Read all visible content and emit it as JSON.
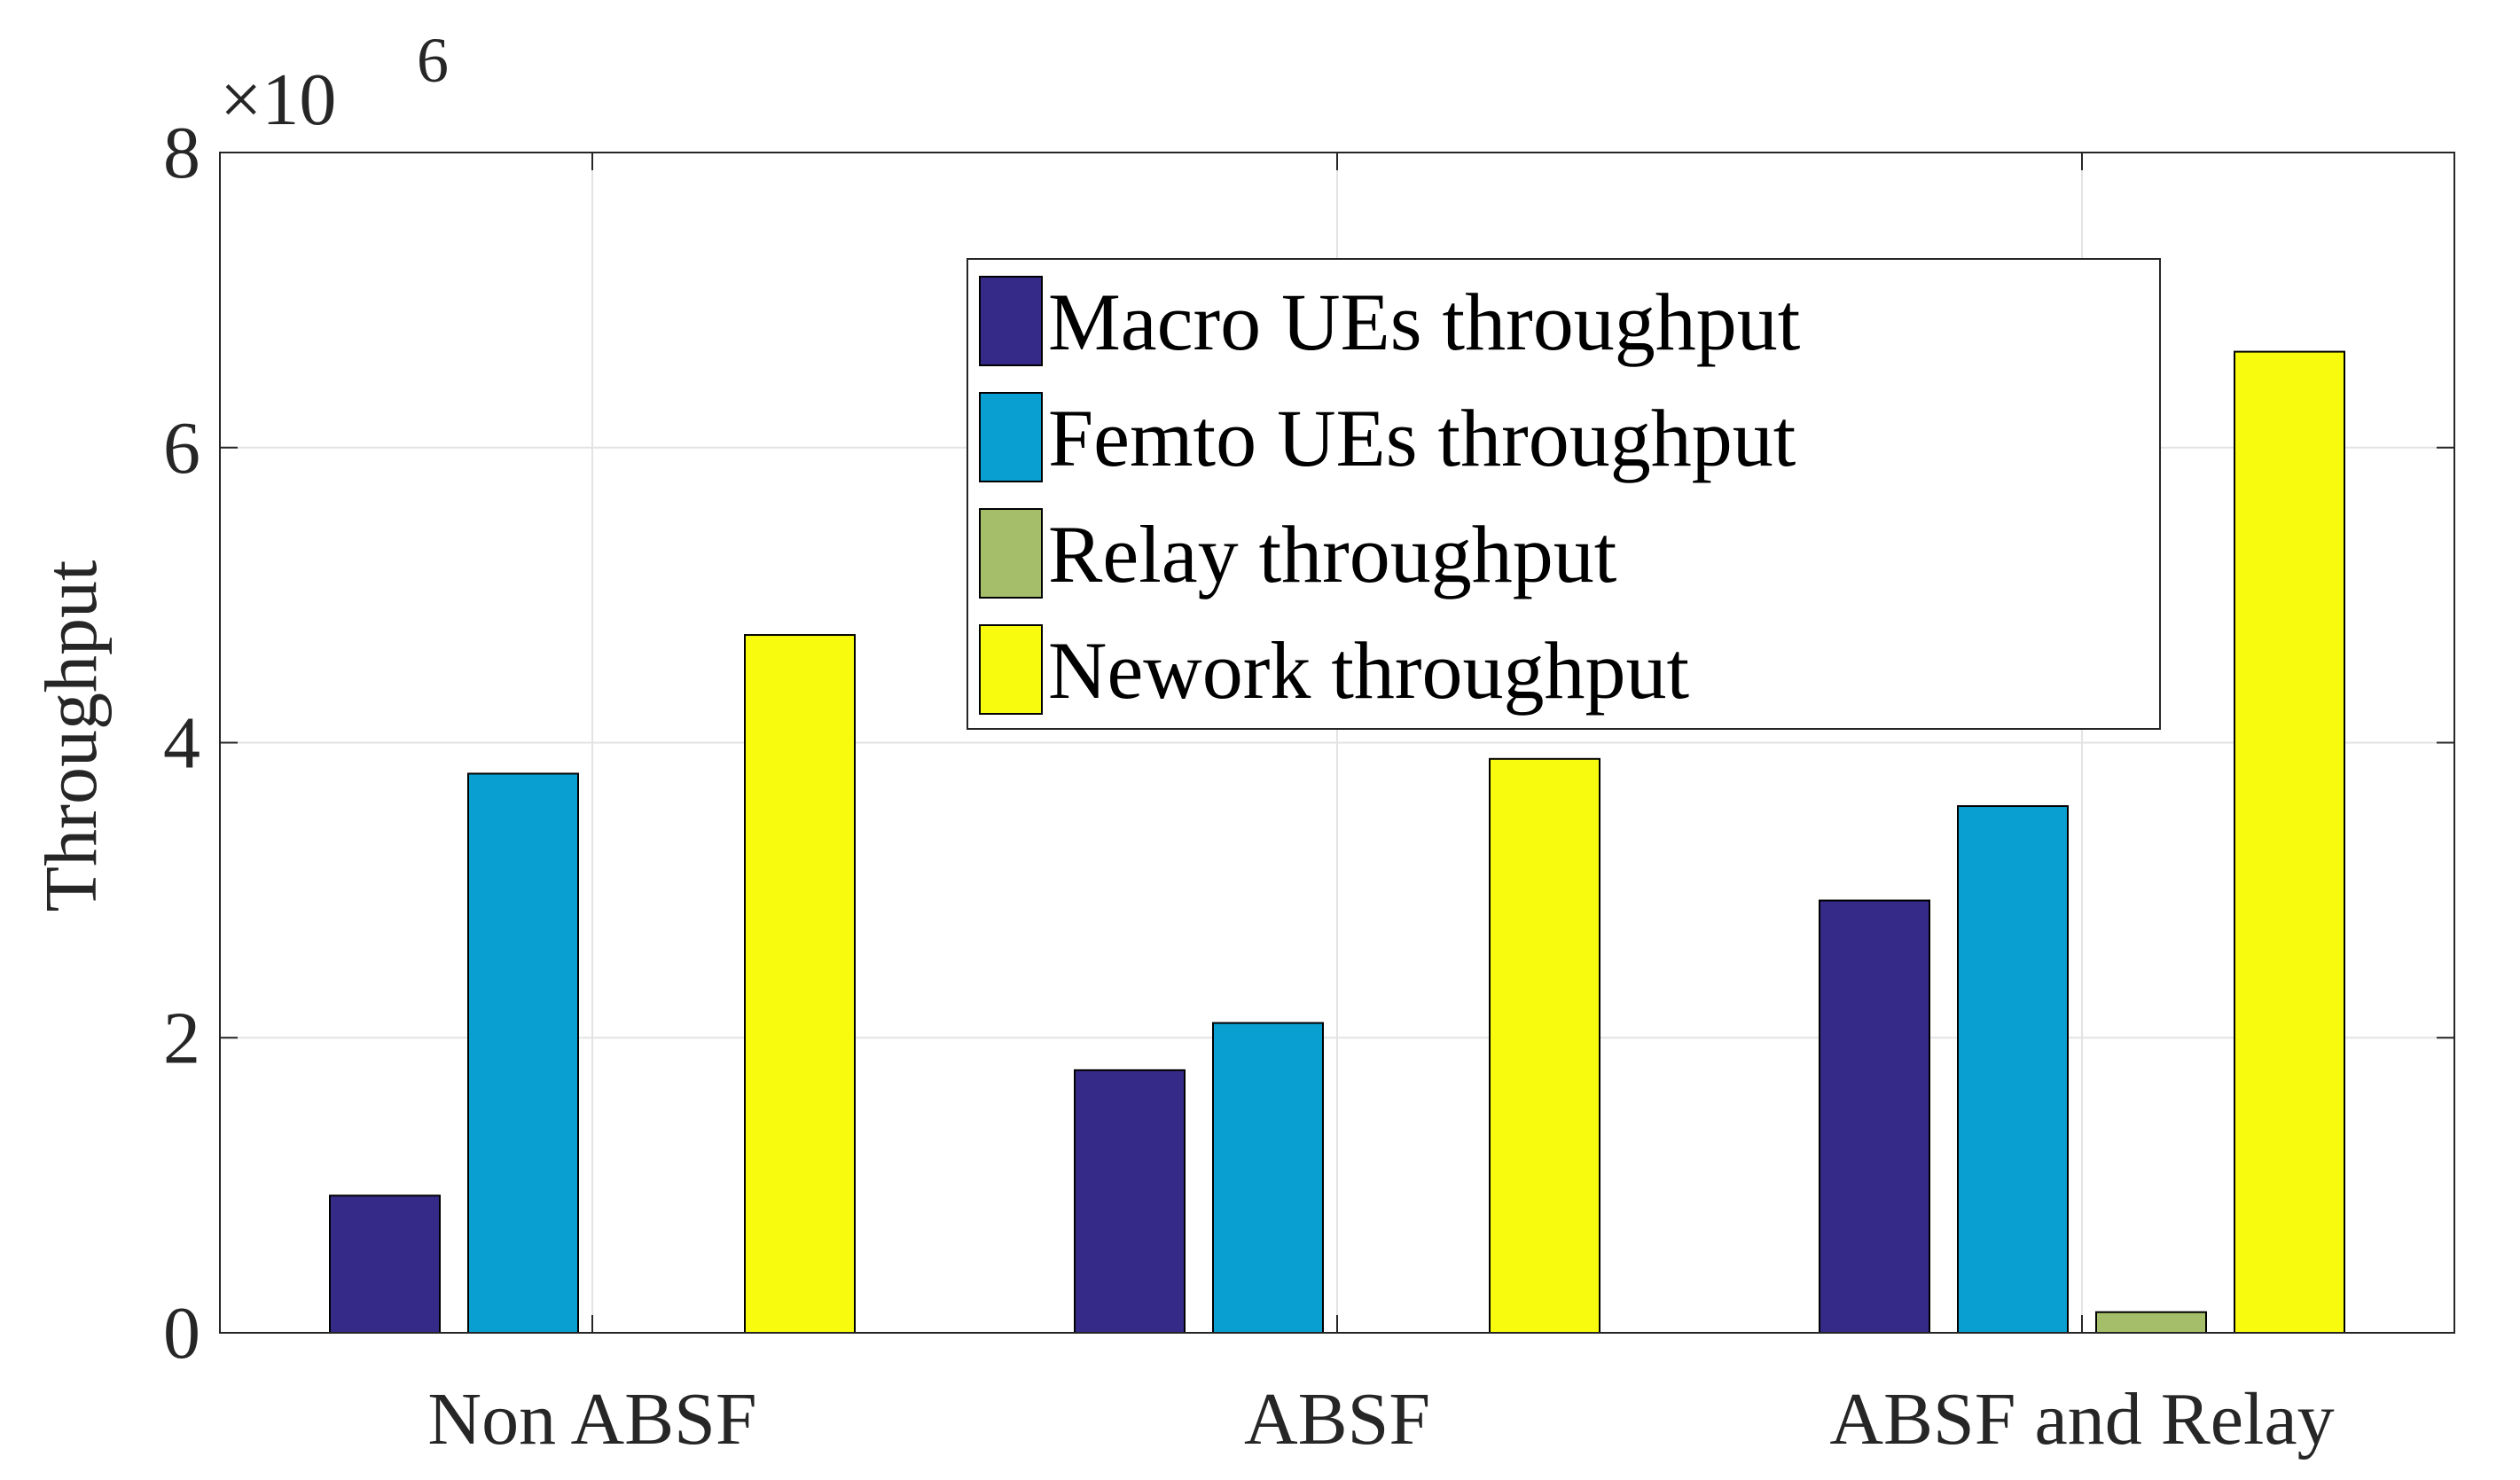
{
  "chart_data": {
    "type": "bar",
    "title": "",
    "xlabel": "",
    "ylabel": "Throughput",
    "exponent_label": {
      "base": "×10",
      "power": "6"
    },
    "categories": [
      "Non ABSF",
      "ABSF",
      "ABSF and Relay"
    ],
    "ylim": [
      0,
      8
    ],
    "yticks": [
      "0",
      "2",
      "4",
      "6",
      "8"
    ],
    "grid": true,
    "legend_position": "top-center",
    "series": [
      {
        "name": "Macro UEs throughput",
        "color": "#352A87",
        "values": [
          0.93,
          1.78,
          2.93
        ]
      },
      {
        "name": "Femto UEs throughput",
        "color": "#0A9FD1",
        "values": [
          3.79,
          2.1,
          3.57
        ]
      },
      {
        "name": "Relay throughput",
        "color": "#A5BE69",
        "values": [
          0,
          0,
          0.14
        ]
      },
      {
        "name": "Nework throughput",
        "color": "#F9FB0E",
        "values": [
          4.73,
          3.89,
          6.65
        ]
      }
    ]
  }
}
